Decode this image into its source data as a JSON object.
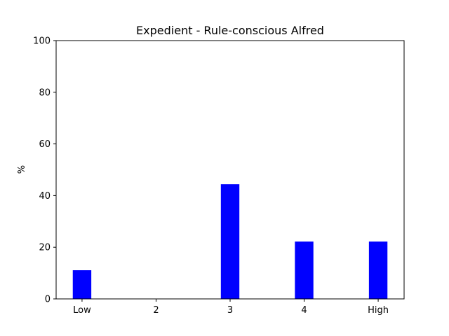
{
  "chart_data": {
    "type": "bar",
    "title": "Expedient - Rule-conscious Alfred",
    "xlabel": "",
    "ylabel": "%",
    "categories": [
      "Low",
      "2",
      "3",
      "4",
      "High"
    ],
    "values": [
      11.1,
      0,
      44.4,
      22.2,
      22.2
    ],
    "ylim": [
      0,
      100
    ],
    "yticks": [
      0,
      20,
      40,
      60,
      80,
      100
    ],
    "grid": false,
    "colors": {
      "bar": "#0000ff",
      "axes": "#000000",
      "background": "#ffffff"
    }
  }
}
